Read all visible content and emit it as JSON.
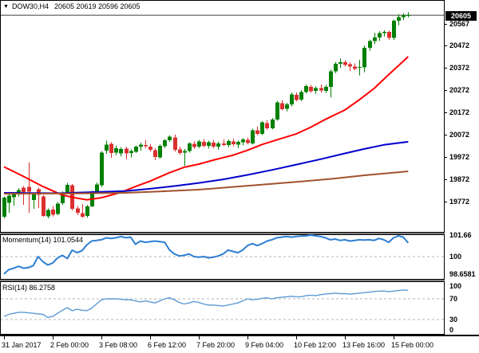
{
  "title": {
    "symbol": "DOW30,H4",
    "ohlc": "20605 20619 20596 20605"
  },
  "icons": {
    "symbol_dropdown": "▼"
  },
  "colors": {
    "bull": "#008000",
    "bear": "#db3030",
    "ma_fast": "#ff0000",
    "ma_mid": "#0000cd",
    "ma_slow": "#a0522d",
    "momentum": "#2e7fd2",
    "rsi": "#5b9bd5",
    "bid_line": "#3c3c3c",
    "level": "#b4b4b4",
    "axis_text": "#000000",
    "panel_bg": "#ffffff"
  },
  "chart_data": {
    "type": "candlestick",
    "symbol": "DOW30,H4",
    "timeframe": "H4",
    "y_axis": {
      "labels": [
        "20567",
        "20472",
        "20372",
        "20272",
        "20172",
        "20072",
        "19972",
        "19872",
        "19772"
      ],
      "current_price": 20605
    },
    "x_axis": {
      "ticks": [
        {
          "label": "31 Jan 2017",
          "index": 0
        },
        {
          "label": "2 Feb 00:00",
          "index": 10
        },
        {
          "label": "3 Feb 08:00",
          "index": 20
        },
        {
          "label": "6 Feb 12:00",
          "index": 30
        },
        {
          "label": "7 Feb 20:00",
          "index": 40
        },
        {
          "label": "9 Feb 04:00",
          "index": 50
        },
        {
          "label": "10 Feb 12:00",
          "index": 60
        },
        {
          "label": "13 Feb 16:00",
          "index": 70
        },
        {
          "label": "15 Feb 00:00",
          "index": 80
        }
      ]
    },
    "candles": [
      [
        19705,
        19795,
        19698,
        19790
      ],
      [
        19768,
        19806,
        19722,
        19800
      ],
      [
        19792,
        19816,
        19755,
        19810
      ],
      [
        19805,
        19832,
        19795,
        19824
      ],
      [
        19835,
        19842,
        19758,
        19815
      ],
      [
        19838,
        19948,
        19722,
        19818
      ],
      [
        19780,
        19812,
        19740,
        19806
      ],
      [
        19828,
        19836,
        19744,
        19803
      ],
      [
        19795,
        19802,
        19704,
        19708
      ],
      [
        19706,
        19742,
        19698,
        19736
      ],
      [
        19738,
        19752,
        19706,
        19714
      ],
      [
        19718,
        19770,
        19712,
        19764
      ],
      [
        19766,
        19818,
        19758,
        19812
      ],
      [
        19812,
        19856,
        19806,
        19848
      ],
      [
        19845,
        19852,
        19732,
        19740
      ],
      [
        19742,
        19754,
        19712,
        19722
      ],
      [
        19722,
        19762,
        19700,
        19706
      ],
      [
        19708,
        19758,
        19702,
        19752
      ],
      [
        19752,
        19822,
        19748,
        19815
      ],
      [
        19818,
        19858,
        19812,
        19850
      ],
      [
        19845,
        19998,
        19838,
        19992
      ],
      [
        20000,
        20045,
        19985,
        20028
      ],
      [
        20030,
        20038,
        19968,
        19990
      ],
      [
        19992,
        20022,
        19980,
        20012
      ],
      [
        19988,
        20016,
        19975,
        20008
      ],
      [
        20010,
        20018,
        19962,
        19988
      ],
      [
        19990,
        20006,
        19970,
        19998
      ],
      [
        19996,
        20022,
        19990,
        20018
      ],
      [
        20018,
        20036,
        20000,
        20028
      ],
      [
        20026,
        20048,
        20012,
        20020
      ],
      [
        20018,
        20030,
        19995,
        20005
      ],
      [
        20002,
        20012,
        19958,
        19972
      ],
      [
        19970,
        20028,
        19965,
        20022
      ],
      [
        20020,
        20052,
        20012,
        20046
      ],
      [
        20046,
        20068,
        20040,
        20062
      ],
      [
        20060,
        20072,
        19996,
        20004
      ],
      [
        20006,
        20018,
        19982,
        19990
      ],
      [
        19992,
        20008,
        19933,
        19998
      ],
      [
        19998,
        20038,
        19992,
        20032
      ],
      [
        20030,
        20042,
        20008,
        20016
      ],
      [
        20018,
        20048,
        20012,
        20042
      ],
      [
        20040,
        20052,
        20015,
        20022
      ],
      [
        20022,
        20045,
        20010,
        20038
      ],
      [
        20036,
        20048,
        20010,
        20018
      ],
      [
        20018,
        20040,
        20005,
        20032
      ],
      [
        20032,
        20050,
        20020,
        20026
      ],
      [
        20026,
        20050,
        20016,
        20044
      ],
      [
        20042,
        20055,
        20020,
        20028
      ],
      [
        20028,
        20046,
        20012,
        20040
      ],
      [
        20038,
        20056,
        20024,
        20050
      ],
      [
        20048,
        20058,
        20028,
        20034
      ],
      [
        20032,
        20098,
        20028,
        20092
      ],
      [
        20092,
        20108,
        20070,
        20076
      ],
      [
        20076,
        20132,
        20070,
        20126
      ],
      [
        20124,
        20136,
        20094,
        20100
      ],
      [
        20100,
        20146,
        20096,
        20140
      ],
      [
        20140,
        20222,
        20134,
        20215
      ],
      [
        20212,
        20226,
        20180,
        20186
      ],
      [
        20188,
        20214,
        20176,
        20206
      ],
      [
        20206,
        20260,
        20198,
        20252
      ],
      [
        20250,
        20260,
        20220,
        20226
      ],
      [
        20228,
        20270,
        20222,
        20262
      ],
      [
        20262,
        20296,
        20256,
        20288
      ],
      [
        20286,
        20294,
        20260,
        20266
      ],
      [
        20268,
        20288,
        20254,
        20280
      ],
      [
        20280,
        20296,
        20260,
        20270
      ],
      [
        20268,
        20294,
        20258,
        20286
      ],
      [
        20286,
        20362,
        20238,
        20354
      ],
      [
        20354,
        20396,
        20346,
        20388
      ],
      [
        20388,
        20412,
        20370,
        20396
      ],
      [
        20396,
        20404,
        20376,
        20384
      ],
      [
        20386,
        20394,
        20356,
        20376
      ],
      [
        20376,
        20390,
        20360,
        20366
      ],
      [
        20370,
        20406,
        20336,
        20374
      ],
      [
        20372,
        20470,
        20350,
        20460
      ],
      [
        20460,
        20496,
        20446,
        20490
      ],
      [
        20490,
        20526,
        20476,
        20506
      ],
      [
        20506,
        20534,
        20490,
        20526
      ],
      [
        20526,
        20538,
        20510,
        20530
      ],
      [
        20530,
        20536,
        20496,
        20504
      ],
      [
        20504,
        20586,
        20494,
        20580
      ],
      [
        20580,
        20610,
        20560,
        20596
      ],
      [
        20596,
        20614,
        20584,
        20606
      ],
      [
        20605,
        20619,
        20596,
        20605
      ]
    ],
    "overlays": [
      {
        "name": "ma-fast-line",
        "color": "#ff0000",
        "points": [
          [
            0,
            19928
          ],
          [
            4,
            19885
          ],
          [
            8,
            19840
          ],
          [
            12,
            19802
          ],
          [
            15,
            19788
          ],
          [
            17,
            19781
          ],
          [
            20,
            19790
          ],
          [
            24,
            19814
          ],
          [
            27,
            19840
          ],
          [
            30,
            19864
          ],
          [
            34,
            19902
          ],
          [
            37,
            19926
          ],
          [
            40,
            19940
          ],
          [
            43,
            19958
          ],
          [
            47,
            19980
          ],
          [
            50,
            20002
          ],
          [
            53,
            20028
          ],
          [
            57,
            20055
          ],
          [
            60,
            20075
          ],
          [
            63,
            20105
          ],
          [
            66,
            20140
          ],
          [
            70,
            20182
          ],
          [
            73,
            20228
          ],
          [
            76,
            20278
          ],
          [
            79,
            20340
          ],
          [
            83,
            20420
          ]
        ]
      },
      {
        "name": "ma-mid-line",
        "color": "#0000cd",
        "points": [
          [
            0,
            19812
          ],
          [
            11,
            19810
          ],
          [
            20,
            19816
          ],
          [
            25,
            19820
          ],
          [
            30,
            19830
          ],
          [
            35,
            19842
          ],
          [
            40,
            19856
          ],
          [
            45,
            19872
          ],
          [
            50,
            19892
          ],
          [
            55,
            19914
          ],
          [
            60,
            19938
          ],
          [
            65,
            19962
          ],
          [
            70,
            19988
          ],
          [
            74,
            20008
          ],
          [
            78,
            20026
          ],
          [
            83,
            20040
          ]
        ]
      },
      {
        "name": "ma-slow-line",
        "color": "#a0522d",
        "points": [
          [
            0,
            19808
          ],
          [
            15,
            19809
          ],
          [
            25,
            19812
          ],
          [
            32,
            19818
          ],
          [
            40,
            19826
          ],
          [
            48,
            19840
          ],
          [
            55,
            19852
          ],
          [
            62,
            19864
          ],
          [
            68,
            19876
          ],
          [
            74,
            19890
          ],
          [
            79,
            19900
          ],
          [
            83,
            19908
          ]
        ]
      }
    ],
    "indicators": [
      {
        "name": "Momentum",
        "period": 14,
        "current": "101.0544",
        "label": "Momentum(14) 101.0544",
        "color": "#2e7fd2",
        "levels": [
          100
        ],
        "scale": [
          {
            "text": "101.66",
            "v": 101.66
          },
          {
            "text": "100",
            "v": 100
          },
          {
            "text": "98.6581",
            "v": 98.6581
          }
        ],
        "values": [
          98.66,
          99.0,
          99.1,
          99.25,
          99.1,
          99.15,
          99.3,
          100.0,
          99.6,
          99.35,
          99.5,
          99.9,
          100.1,
          99.85,
          100.5,
          100.3,
          100.45,
          100.9,
          101.2,
          101.25,
          101.3,
          101.45,
          101.4,
          101.45,
          101.55,
          101.45,
          101.5,
          100.95,
          101.2,
          101.1,
          101.15,
          101.2,
          101.15,
          101.1,
          100.5,
          100.2,
          100.05,
          100.1,
          100.2,
          100.0,
          99.95,
          100.0,
          99.9,
          99.95,
          100.05,
          100.2,
          100.5,
          100.4,
          100.3,
          100.5,
          100.85,
          101.0,
          100.85,
          101.0,
          101.2,
          101.3,
          101.45,
          101.5,
          101.55,
          101.5,
          101.55,
          101.58,
          101.6,
          101.66,
          101.6,
          101.55,
          101.45,
          101.3,
          101.35,
          101.25,
          101.3,
          101.2,
          101.25,
          101.3,
          101.28,
          101.3,
          101.25,
          101.4,
          101.3,
          101.1,
          101.45,
          101.6,
          101.5,
          101.05
        ]
      },
      {
        "name": "RSI",
        "period": 14,
        "current": "86.2758",
        "label": "RSI(14) 86.2758",
        "color": "#5b9bd5",
        "levels": [
          70,
          30
        ],
        "scale": [
          {
            "text": "100",
            "v": 100
          },
          {
            "text": "70",
            "v": 70
          },
          {
            "text": "30",
            "v": 30
          },
          {
            "text": "0",
            "v": 0
          }
        ],
        "values": [
          36,
          40,
          42,
          44,
          44,
          43,
          42,
          41,
          40,
          34,
          36,
          42,
          48,
          53,
          47,
          50,
          48,
          47,
          52,
          60,
          68,
          70,
          70,
          70,
          69,
          68,
          68,
          66,
          64,
          66,
          64,
          62,
          66,
          70,
          72,
          68,
          63,
          60,
          62,
          65,
          63,
          60,
          58,
          58,
          57,
          56,
          58,
          60,
          62,
          66,
          70,
          68,
          69,
          71,
          72,
          70,
          72,
          73,
          74,
          75,
          74,
          74,
          76,
          77,
          76,
          78,
          79,
          80,
          81,
          80,
          80,
          79,
          80,
          81,
          82,
          83,
          84,
          85,
          85,
          84,
          85,
          86,
          87,
          86.28
        ]
      }
    ]
  }
}
